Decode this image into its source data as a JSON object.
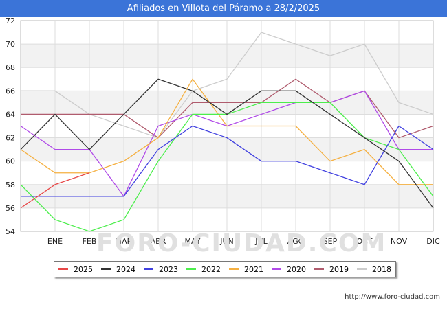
{
  "header": {
    "title": "Afiliados en Villota del Páramo a 28/2/2025"
  },
  "watermark": "FORO-CIUDAD.COM",
  "source": "http://www.foro-ciudad.com",
  "chart_data": {
    "type": "line",
    "title": "Afiliados en Villota del Páramo a 28/2/2025",
    "xlabel": "",
    "ylabel": "",
    "x": [
      "",
      "ENE",
      "FEB",
      "MAR",
      "ABR",
      "MAY",
      "JUN",
      "JUL",
      "AGO",
      "SEP",
      "OCT",
      "NOV",
      "DIC"
    ],
    "ylim": [
      54,
      72
    ],
    "yticks": [
      54,
      56,
      58,
      60,
      62,
      64,
      66,
      68,
      70,
      72
    ],
    "grid": true,
    "legend_position": "bottom",
    "series": [
      {
        "name": "2018",
        "color": "#cccccc",
        "values": [
          66,
          66,
          64,
          63,
          62,
          66,
          67,
          71,
          70,
          69,
          70,
          65,
          64
        ]
      },
      {
        "name": "2019",
        "color": "#b05c6e",
        "values": [
          64,
          64,
          64,
          64,
          62,
          65,
          65,
          65,
          67,
          65,
          66,
          62,
          63
        ]
      },
      {
        "name": "2020",
        "color": "#b04ae8",
        "values": [
          63,
          61,
          61,
          57,
          63,
          64,
          63,
          64,
          65,
          65,
          66,
          61,
          61
        ]
      },
      {
        "name": "2021",
        "color": "#f5b041",
        "values": [
          61,
          59,
          59,
          60,
          62,
          67,
          63,
          63,
          63,
          60,
          61,
          58,
          58
        ]
      },
      {
        "name": "2022",
        "color": "#4cee4c",
        "values": [
          58,
          55,
          54,
          55,
          60,
          64,
          64,
          65,
          65,
          65,
          62,
          61,
          57
        ]
      },
      {
        "name": "2023",
        "color": "#4040e0",
        "values": [
          57,
          57,
          57,
          57,
          61,
          63,
          62,
          60,
          60,
          59,
          58,
          63,
          61
        ]
      },
      {
        "name": "2024",
        "color": "#333333",
        "values": [
          61,
          64,
          61,
          64,
          67,
          66,
          64,
          66,
          66,
          64,
          62,
          60,
          56
        ]
      },
      {
        "name": "2025",
        "color": "#e84848",
        "values": [
          56,
          58,
          59,
          null,
          null,
          null,
          null,
          null,
          null,
          null,
          null,
          null,
          null
        ]
      }
    ]
  },
  "legend": [
    {
      "label": "2025",
      "color": "#e84848"
    },
    {
      "label": "2024",
      "color": "#333333"
    },
    {
      "label": "2023",
      "color": "#4040e0"
    },
    {
      "label": "2022",
      "color": "#4cee4c"
    },
    {
      "label": "2021",
      "color": "#f5b041"
    },
    {
      "label": "2020",
      "color": "#b04ae8"
    },
    {
      "label": "2019",
      "color": "#b05c6e"
    },
    {
      "label": "2018",
      "color": "#cccccc"
    }
  ]
}
